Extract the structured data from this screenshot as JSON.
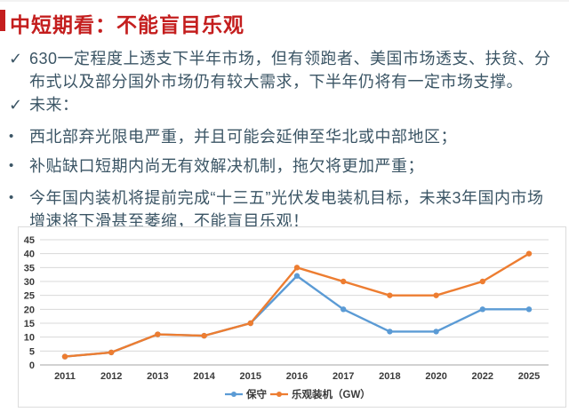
{
  "title": "中短期看：不能盲目乐观",
  "accent_color": "#c41e1e",
  "text_color": "#3b5565",
  "bullets": [
    {
      "marker": "✓",
      "text": "630一定程度上透支下半年市场，但有领跑者、美国市场透支、扶贫、分布式以及部分国外市场仍有较大需求，下半年仍将有一定市场支撑。"
    },
    {
      "marker": "✓",
      "text": "未来："
    },
    {
      "marker": "•",
      "text": "西北部弃光限电严重，并且可能会延伸至华北或中部地区；"
    },
    {
      "marker": "•",
      "text": "补贴缺口短期内尚无有效解决机制，拖欠将更加严重；"
    },
    {
      "marker": "•",
      "text": "今年国内装机将提前完成“十三五”光伏发电装机目标，未来3年国内市场增速将下滑甚至萎缩，不能盲目乐观！"
    }
  ],
  "chart_data": {
    "type": "line",
    "categories": [
      "2011",
      "2012",
      "2013",
      "2014",
      "2015",
      "2016",
      "2017",
      "2018",
      "2020",
      "2022",
      "2025"
    ],
    "series": [
      {
        "name": "保守",
        "color": "#5B9BD5",
        "values": [
          3,
          4.5,
          11,
          10.5,
          15,
          32,
          20,
          12,
          12,
          20,
          20
        ]
      },
      {
        "name": "乐观装机（GW）",
        "color": "#ED7D31",
        "values": [
          3,
          4.5,
          11,
          10.5,
          15,
          35,
          30,
          25,
          25,
          30,
          40
        ]
      }
    ],
    "title": "",
    "xlabel": "",
    "ylabel": "",
    "ylim": [
      0,
      45
    ],
    "ytick_step": 5,
    "grid": true,
    "legend_position": "bottom",
    "axis_label_color": "#3a3a3a",
    "grid_color": "#d8d8d8",
    "axis_line_color": "#a6a6a6"
  }
}
